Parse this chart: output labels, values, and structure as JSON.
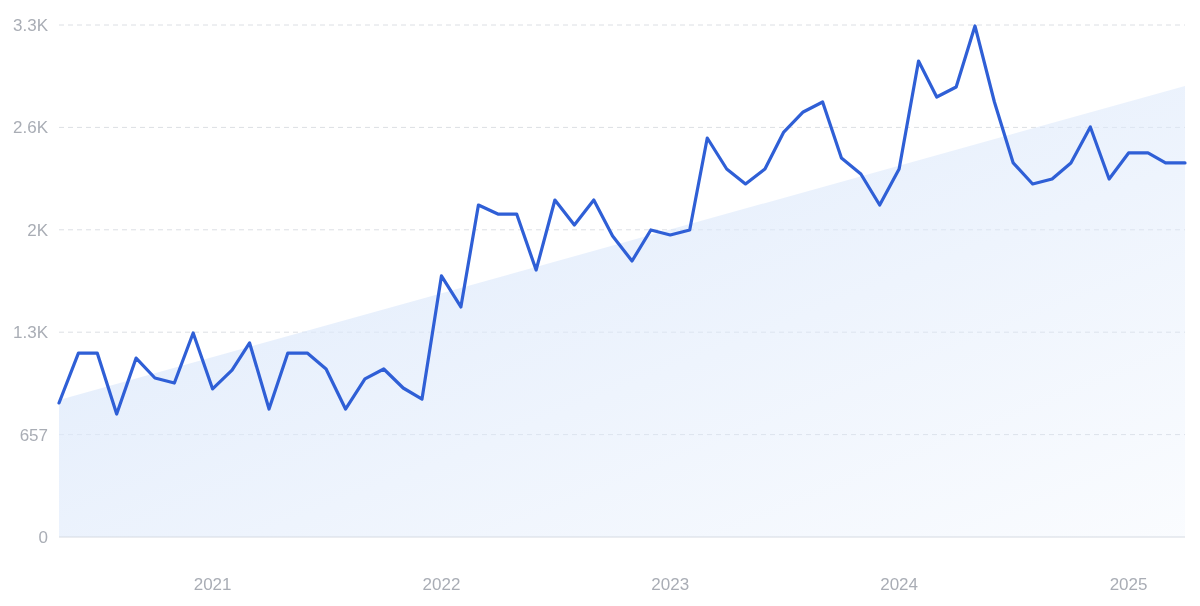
{
  "chart_data": {
    "type": "line",
    "x": [
      "2020-05",
      "2020-06",
      "2020-07",
      "2020-08",
      "2020-09",
      "2020-10",
      "2020-11",
      "2020-12",
      "2021-01",
      "2021-02",
      "2021-03",
      "2021-04",
      "2021-05",
      "2021-06",
      "2021-07",
      "2021-08",
      "2021-09",
      "2021-10",
      "2021-11",
      "2021-12",
      "2022-01",
      "2022-02",
      "2022-03",
      "2022-04",
      "2022-05",
      "2022-06",
      "2022-07",
      "2022-08",
      "2022-09",
      "2022-10",
      "2022-11",
      "2022-12",
      "2023-01",
      "2023-02",
      "2023-03",
      "2023-04",
      "2023-05",
      "2023-06",
      "2023-07",
      "2023-08",
      "2023-09",
      "2023-10",
      "2023-11",
      "2023-12",
      "2024-01",
      "2024-02",
      "2024-03",
      "2024-04",
      "2024-05",
      "2024-06",
      "2024-07",
      "2024-08",
      "2024-09",
      "2024-10",
      "2024-11",
      "2024-12",
      "2025-01",
      "2025-02",
      "2025-03",
      "2025-04"
    ],
    "series": [
      {
        "type": "area",
        "x": [
          "2020-05",
          "2025-04"
        ],
        "values": [
          879,
          2894
        ],
        "color": "#dde9fb"
      },
      {
        "color": "#2f5fd6",
        "values": [
          860,
          1180,
          1180,
          789,
          1148,
          1020,
          988,
          1309,
          950,
          1071,
          1245,
          821,
          1180,
          1180,
          1078,
          821,
          1014,
          1078,
          956,
          885,
          1675,
          1476,
          2130,
          2072,
          2072,
          1713,
          2162,
          2002,
          2162,
          1931,
          1771,
          1970,
          1938,
          1970,
          2560,
          2361,
          2265,
          2361,
          2598,
          2727,
          2791,
          2432,
          2329,
          2130,
          2361,
          3054,
          2823,
          2887,
          3279,
          2791,
          2400,
          2265,
          2297,
          2400,
          2631,
          2297,
          2464,
          2464,
          2400,
          2400
        ]
      }
    ],
    "xlim": [
      "2020-05",
      "2025-04"
    ],
    "xticks": [
      {
        "value": "2021-01",
        "label": "2021"
      },
      {
        "value": "2022-01",
        "label": "2022"
      },
      {
        "value": "2023-01",
        "label": "2023"
      },
      {
        "value": "2024-01",
        "label": "2024"
      },
      {
        "value": "2025-01",
        "label": "2025"
      }
    ],
    "ylim": [
      0,
      3285
    ],
    "yticks": [
      0,
      657,
      {
        "value": 1314,
        "label": "1.3K"
      },
      {
        "value": 1971,
        "label": "2K"
      },
      {
        "value": 2628,
        "label": "2.6K"
      },
      {
        "value": 3285,
        "label": "3.3K"
      }
    ],
    "grid": "y",
    "line_style": "solid",
    "marker": "none"
  }
}
